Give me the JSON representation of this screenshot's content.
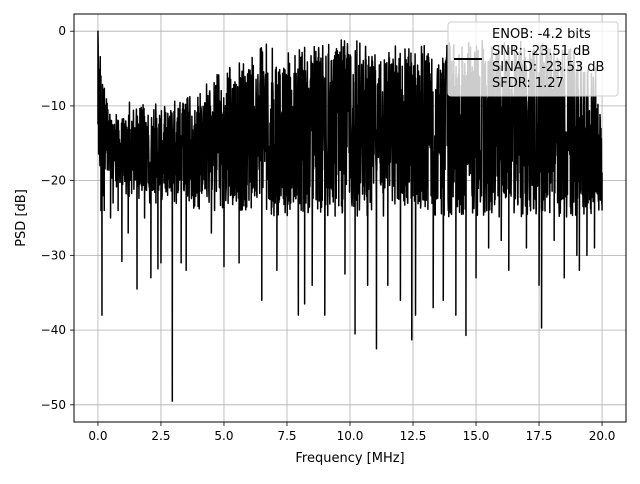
{
  "chart_data": {
    "type": "line",
    "xlabel": "Frequency [MHz]",
    "ylabel": "PSD [dB]",
    "xlim": [
      -0.95,
      20.95
    ],
    "ylim": [
      -52.3,
      2.3
    ],
    "xticks": [
      0.0,
      2.5,
      5.0,
      7.5,
      10.0,
      12.5,
      15.0,
      17.5,
      20.0
    ],
    "xtick_labels": [
      "0.0",
      "2.5",
      "5.0",
      "7.5",
      "10.0",
      "12.5",
      "15.0",
      "17.5",
      "20.0"
    ],
    "yticks": [
      0,
      -10,
      -20,
      -30,
      -40,
      -50
    ],
    "ytick_labels": [
      "0",
      "−10",
      "−20",
      "−30",
      "−40",
      "−50"
    ],
    "grid": true,
    "legend_position": "top-right",
    "legend_lines": [
      "ENOB: -4.2 bits",
      "SNR: -23.51 dB",
      "SINAD: -23.53 dB",
      "SFDR: 1.27"
    ],
    "series": [
      {
        "color": "#000000",
        "description": "Dense noise floor, mostly between -25 and -8 dB with peaks up to about -1 dB above 5 MHz",
        "x": [
          0.0,
          0.01,
          0.02,
          0.05,
          0.08,
          0.12,
          0.16,
          0.2,
          0.25,
          0.35,
          0.5,
          0.6,
          0.8,
          0.95,
          1.2,
          1.25,
          1.55,
          1.85,
          2.1,
          2.3,
          2.38,
          2.5,
          2.95,
          3.3,
          3.5,
          4.5,
          5.0,
          5.6,
          6.5,
          7.1,
          7.95,
          8.2,
          8.5,
          9.0,
          9.8,
          10.2,
          10.7,
          11.05,
          11.5,
          12.0,
          12.45,
          12.6,
          13.3,
          13.7,
          14.2,
          14.6,
          15.0,
          15.5,
          16.0,
          16.3,
          17.0,
          17.5,
          17.6,
          18.1,
          18.5,
          19.0,
          19.1,
          19.4,
          19.7,
          20.0
        ],
        "y": [
          0.0,
          -2.5,
          -5.0,
          -12.0,
          -18.0,
          -24.0,
          -38.0,
          -22.0,
          -24.0,
          -11.0,
          -25.0,
          -23.0,
          -24.0,
          -30.8,
          -27.0,
          -9.5,
          -34.5,
          -25.0,
          -33.0,
          -23.0,
          -31.8,
          -31.0,
          -49.5,
          -31.0,
          -32.0,
          -27.0,
          -31.5,
          -31.0,
          -36.0,
          -32.0,
          -38.0,
          -36.5,
          -34.0,
          -38.0,
          -32.5,
          -40.5,
          -34.0,
          -42.5,
          -34.0,
          -36.0,
          -41.3,
          -38.0,
          -37.0,
          -36.0,
          -38.0,
          -40.7,
          -33.0,
          -29.0,
          -28.0,
          -32.0,
          -29.0,
          -34.0,
          -39.7,
          -28.0,
          -33.0,
          -30.0,
          -32.0,
          -30.0,
          -29.0,
          -24.0
        ],
        "upper_envelope_x": [
          0.0,
          0.5,
          1.0,
          2.0,
          3.0,
          4.0,
          4.5,
          5.0,
          6.0,
          6.5,
          7.0,
          7.5,
          8.0,
          9.0,
          10.0,
          11.0,
          12.0,
          13.0,
          14.0,
          15.0,
          16.0,
          17.0,
          18.0,
          19.0,
          19.8,
          20.0
        ],
        "upper_envelope_y": [
          0.0,
          -11.0,
          -10.5,
          -9.5,
          -9.0,
          -8.5,
          -6.0,
          -5.0,
          -3.5,
          -1.2,
          -2.5,
          -3.0,
          -2.0,
          -1.5,
          -1.0,
          -2.0,
          -1.5,
          -1.8,
          -1.5,
          -1.0,
          -1.5,
          -1.0,
          -2.0,
          -2.0,
          -5.0,
          -13.0
        ],
        "lower_envelope_x": [
          0.0,
          1.0,
          2.0,
          3.0,
          4.0,
          5.0,
          6.0,
          7.0,
          8.0,
          9.0,
          10.0,
          11.0,
          12.0,
          13.0,
          14.0,
          15.0,
          16.0,
          17.0,
          18.0,
          19.0,
          20.0
        ],
        "lower_envelope_y": [
          -19.0,
          -22.0,
          -23.0,
          -23.0,
          -24.0,
          -24.0,
          -24.0,
          -25.0,
          -25.0,
          -25.0,
          -25.0,
          -25.0,
          -25.0,
          -25.0,
          -25.0,
          -25.0,
          -25.0,
          -25.0,
          -25.0,
          -25.0,
          -24.0
        ]
      }
    ]
  }
}
